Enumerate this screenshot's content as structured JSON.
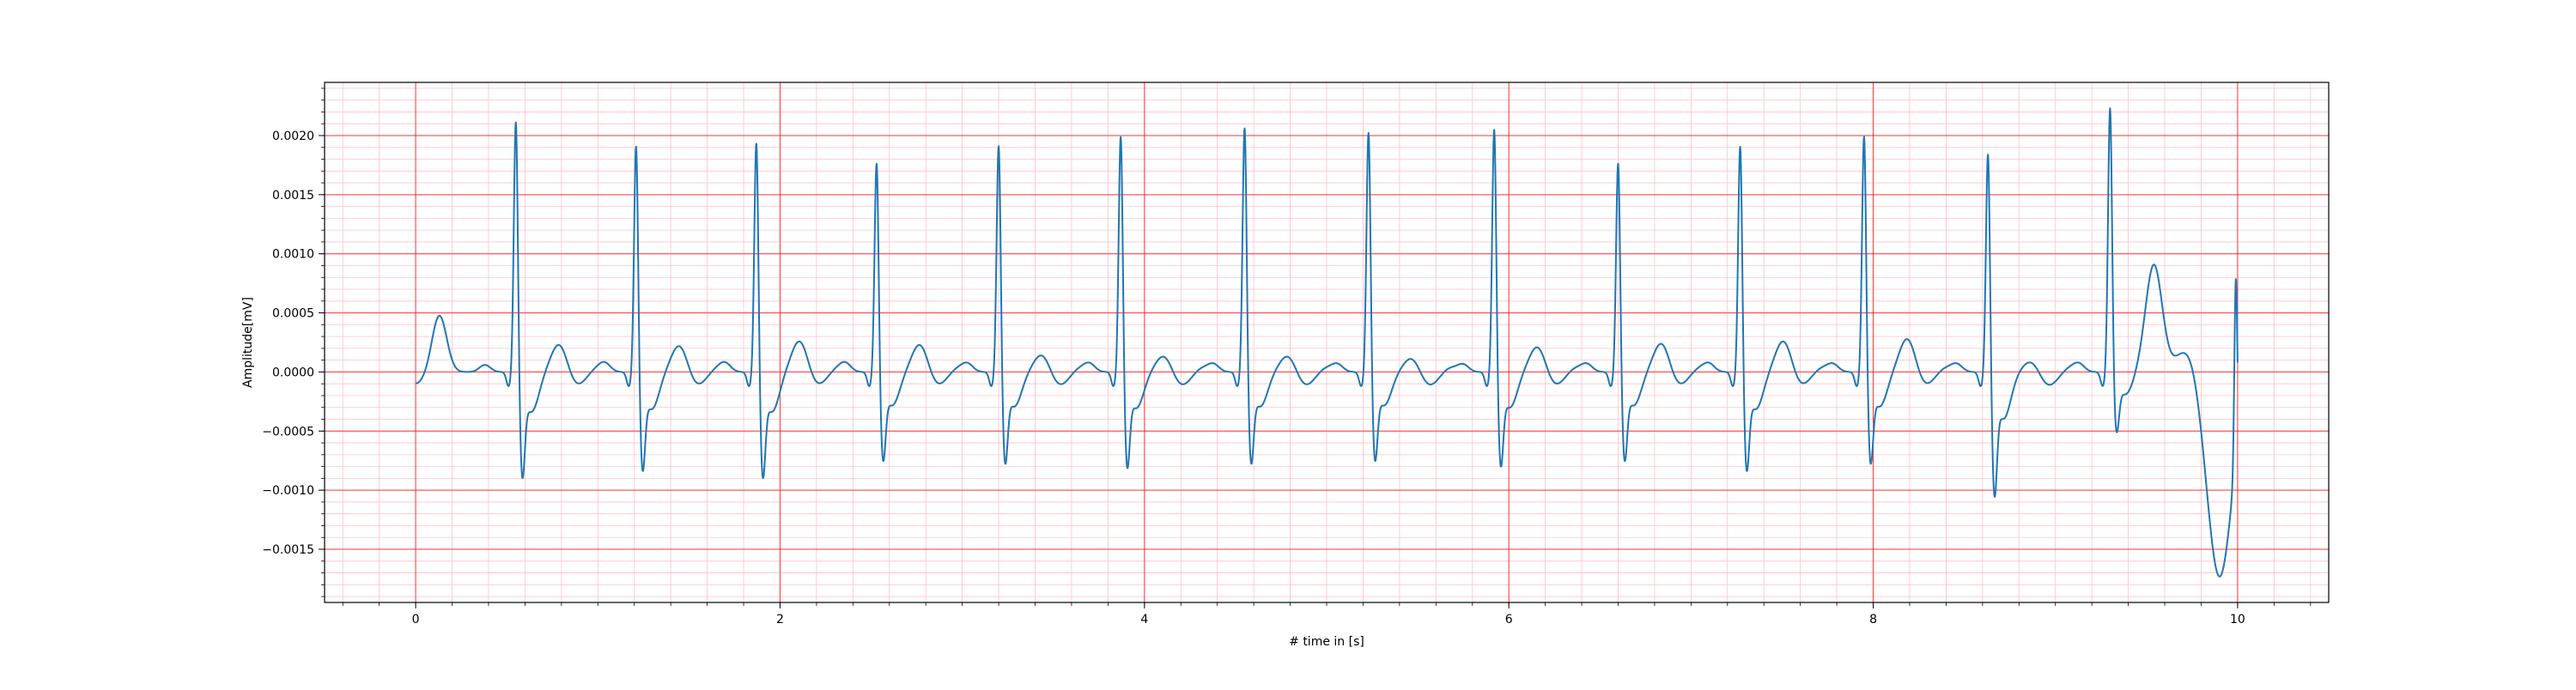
{
  "chart_data": {
    "type": "line",
    "title": "",
    "xlabel": "# time in [s]",
    "ylabel": "Amplitude[mV]",
    "xlim": [
      -0.5,
      10.5
    ],
    "ylim": [
      -0.00195,
      0.00245
    ],
    "grid": {
      "major": true,
      "minor": true,
      "major_color": "#ff0000",
      "minor_color": "#ffc0cb",
      "major_x_step": 2,
      "major_y_step": 0.0005,
      "minor_x_step": 0.2,
      "minor_y_step": 0.0001
    },
    "x_ticks": [
      0,
      2,
      4,
      6,
      8,
      10
    ],
    "x_tick_labels": [
      "0",
      "2",
      "4",
      "6",
      "8",
      "10"
    ],
    "y_ticks": [
      -0.0015,
      -0.001,
      -0.0005,
      0.0,
      0.0005,
      0.001,
      0.0015,
      0.002
    ],
    "y_tick_labels": [
      "−0.0015",
      "−0.0010",
      "−0.0005",
      "0.0000",
      "0.0005",
      "0.0010",
      "0.0015",
      "0.0020"
    ],
    "series": [
      {
        "color": "#1f77b4",
        "beats": [
          {
            "t": 0.55,
            "r": 0.00218,
            "s": -0.00075,
            "t_wave": 0.00025
          },
          {
            "t": 1.21,
            "r": 0.00197,
            "s": -0.0007,
            "t_wave": 0.00024
          },
          {
            "t": 1.87,
            "r": 0.002,
            "s": -0.00075,
            "t_wave": 0.00028
          },
          {
            "t": 2.53,
            "r": 0.00182,
            "s": -0.00063,
            "t_wave": 0.00025
          },
          {
            "t": 3.2,
            "r": 0.00197,
            "s": -0.00065,
            "t_wave": 0.00016
          },
          {
            "t": 3.87,
            "r": 0.00205,
            "s": -0.00068,
            "t_wave": 0.00015
          },
          {
            "t": 4.55,
            "r": 0.00212,
            "s": -0.00065,
            "t_wave": 0.00015
          },
          {
            "t": 5.23,
            "r": 0.00208,
            "s": -0.00063,
            "t_wave": 0.00013
          },
          {
            "t": 5.92,
            "r": 0.00211,
            "s": -0.00067,
            "t_wave": 0.00023
          },
          {
            "t": 6.6,
            "r": 0.00182,
            "s": -0.00063,
            "t_wave": 0.00026
          },
          {
            "t": 7.27,
            "r": 0.00197,
            "s": -0.0007,
            "t_wave": 0.00028
          },
          {
            "t": 7.95,
            "r": 0.00205,
            "s": -0.00065,
            "t_wave": 0.0003
          },
          {
            "t": 8.63,
            "r": 0.00192,
            "s": -0.00088,
            "t_wave": 0.0001
          },
          {
            "t": 9.3,
            "r": 0.00227,
            "s": -0.00043,
            "t_wave": 0.00085
          }
        ],
        "start_value": -0.0001,
        "end_min": -0.00175,
        "end_spike": 0.00035
      }
    ]
  }
}
